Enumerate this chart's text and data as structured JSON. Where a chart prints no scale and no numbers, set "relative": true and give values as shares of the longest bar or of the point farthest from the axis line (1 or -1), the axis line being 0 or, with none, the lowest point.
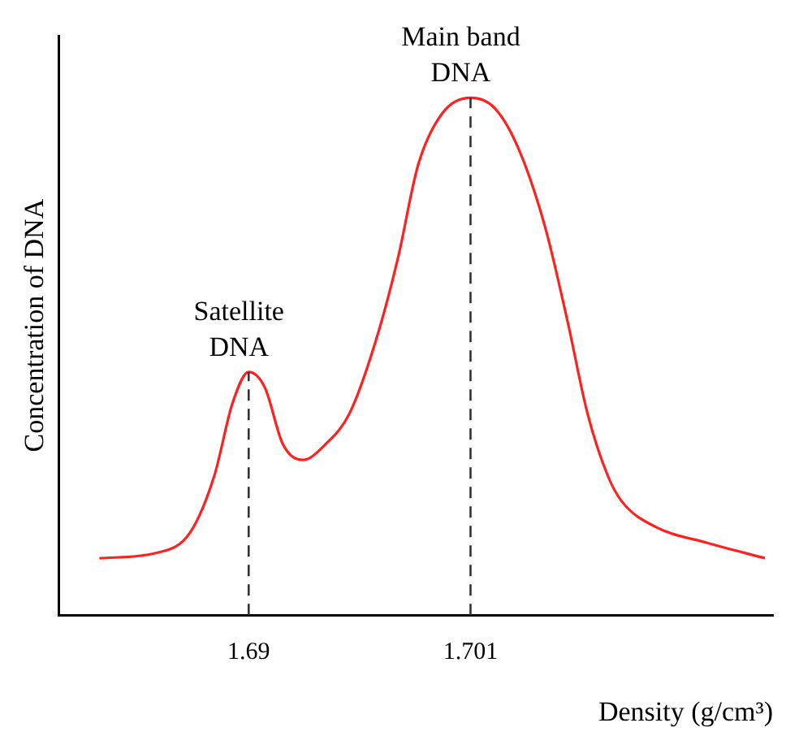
{
  "chart_data": {
    "type": "line",
    "relative": true,
    "xlabel": "Density (g/cm³)",
    "ylabel": "Concentration of DNA",
    "grid": false,
    "legend": false,
    "marker": "none",
    "line_style": "solid",
    "tick_labels": "x",
    "xlim": [
      1.6806,
      1.716
    ],
    "xticks": [
      1.69,
      1.701
    ],
    "series": [
      {
        "color": "#ff2020",
        "x": [
          1.6826,
          1.6854,
          1.6871,
          1.6883,
          1.6892,
          1.69,
          1.6908,
          1.6917,
          1.6927,
          1.6938,
          1.695,
          1.6963,
          1.6974,
          1.6984,
          1.6996,
          1.701,
          1.7022,
          1.7034,
          1.7047,
          1.7058,
          1.7068,
          1.7078,
          1.7085,
          1.7102,
          1.7127,
          1.7156
        ],
        "values": [
          0.11,
          0.12,
          0.16,
          0.27,
          0.41,
          0.47,
          0.44,
          0.33,
          0.3,
          0.33,
          0.39,
          0.53,
          0.69,
          0.87,
          0.97,
          1,
          0.98,
          0.9,
          0.75,
          0.57,
          0.39,
          0.27,
          0.22,
          0.17,
          0.14,
          0.11
        ]
      }
    ],
    "ref_lines": [
      {
        "axis": "x",
        "value": 1.69,
        "line_style": "dashed",
        "color": "#333333"
      },
      {
        "axis": "x",
        "value": 1.701,
        "line_style": "dashed",
        "color": "#333333"
      }
    ],
    "annotations": [
      {
        "text": "Satellite\nDNA",
        "x": 1.69,
        "y": 0.47
      },
      {
        "text": "Main band\nDNA",
        "x": 1.701,
        "y": 1
      }
    ]
  }
}
